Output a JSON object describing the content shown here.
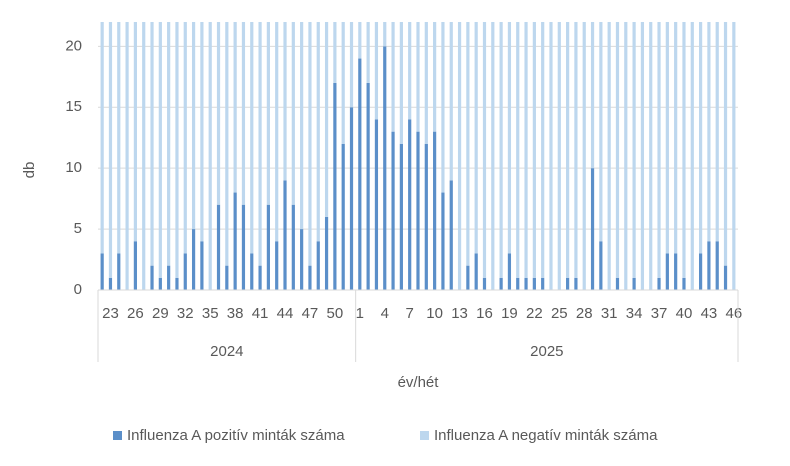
{
  "chart_data": {
    "type": "stacked_bar",
    "y_label": "db",
    "x_label": "év/hét",
    "ylim": [
      0,
      22
    ],
    "yticks": [
      0,
      5,
      10,
      15,
      20
    ],
    "grid": true,
    "legend": "bottom",
    "groups": [
      {
        "label": "2024",
        "size": 31
      },
      {
        "label": "2025",
        "size": 46
      }
    ],
    "categories": [
      null,
      "23",
      null,
      null,
      "26",
      null,
      null,
      "29",
      null,
      null,
      "32",
      null,
      null,
      "35",
      null,
      null,
      "38",
      null,
      null,
      "41",
      null,
      null,
      "44",
      null,
      null,
      "47",
      null,
      null,
      "50",
      null,
      null,
      "1",
      null,
      null,
      "4",
      null,
      null,
      "7",
      null,
      null,
      "10",
      null,
      null,
      "13",
      null,
      null,
      "16",
      null,
      null,
      "19",
      null,
      null,
      "22",
      null,
      null,
      "25",
      null,
      null,
      "28",
      null,
      null,
      "31",
      null,
      null,
      "34",
      null,
      null,
      "37",
      null,
      null,
      "40",
      null,
      null,
      "43",
      null,
      null,
      "46"
    ],
    "series": [
      {
        "name": "Influenza A pozitív minták száma",
        "color": "#5b8fc9",
        "values": [
          3,
          1,
          3,
          0,
          4,
          0,
          2,
          1,
          2,
          1,
          3,
          5,
          4,
          0,
          7,
          2,
          8,
          7,
          3,
          2,
          7,
          4,
          9,
          7,
          5,
          2,
          4,
          6,
          17,
          12,
          15,
          19,
          17,
          14,
          20,
          13,
          12,
          14,
          13,
          12,
          13,
          8,
          9,
          0,
          2,
          3,
          1,
          0,
          1,
          3,
          1,
          1,
          1,
          1,
          0,
          0,
          1,
          1,
          0,
          10,
          4,
          0,
          1,
          0,
          1,
          0,
          0,
          1,
          3,
          3,
          1,
          0,
          3,
          4,
          4,
          2,
          0
        ]
      },
      {
        "name": "Influenza A negatív minták száma",
        "color": "#bdd7ee",
        "values": [
          19,
          21,
          19,
          22,
          18,
          22,
          20,
          21,
          20,
          21,
          19,
          17,
          18,
          22,
          15,
          20,
          14,
          15,
          19,
          20,
          15,
          18,
          13,
          15,
          17,
          20,
          18,
          16,
          5,
          10,
          7,
          3,
          5,
          8,
          2,
          9,
          10,
          8,
          9,
          10,
          9,
          14,
          13,
          22,
          20,
          19,
          21,
          22,
          21,
          19,
          21,
          21,
          21,
          21,
          22,
          22,
          21,
          21,
          22,
          12,
          18,
          22,
          21,
          22,
          21,
          22,
          22,
          21,
          19,
          19,
          21,
          22,
          19,
          18,
          18,
          20,
          22
        ]
      }
    ]
  }
}
